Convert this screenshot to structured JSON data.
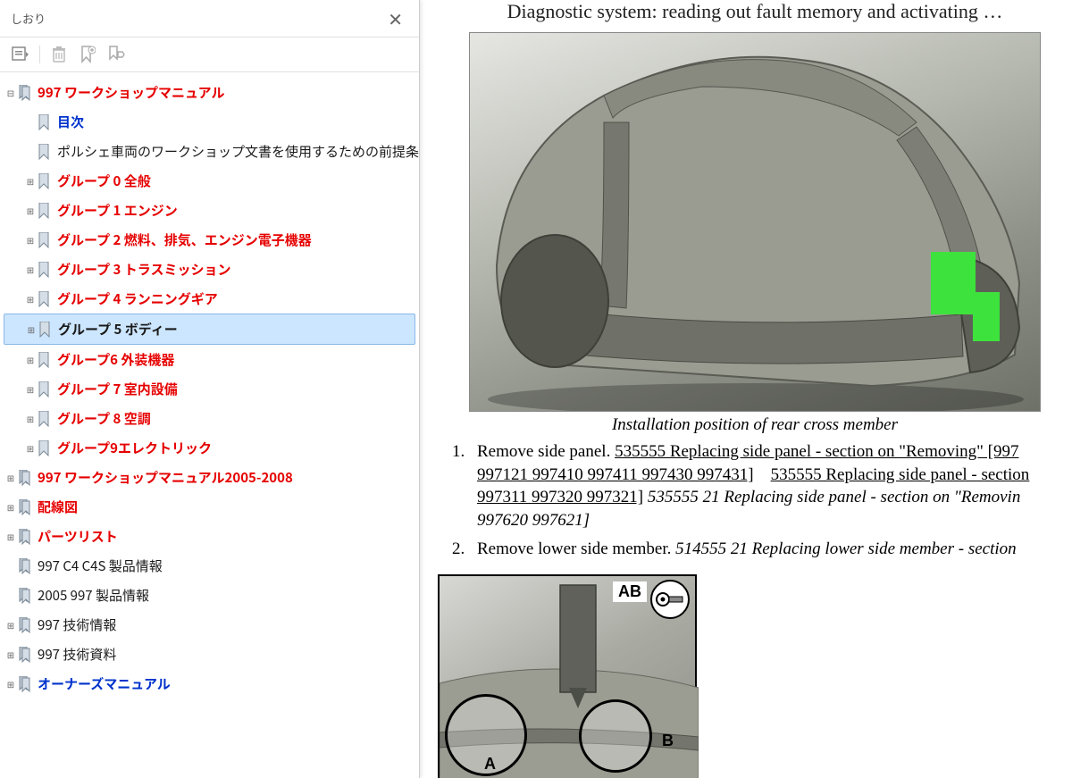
{
  "sidebar": {
    "title": "しおり",
    "colors": {
      "red": "#e60000",
      "blue": "#0033cc",
      "black": "#1a1a1a",
      "selected_bg": "#cce6ff",
      "selected_border": "#8ab8e5"
    }
  },
  "tree": [
    {
      "level": 0,
      "label": "997  ワークショップマニュアル",
      "color": "red",
      "bold": true,
      "icon": "multi",
      "expander": "−"
    },
    {
      "level": 1,
      "label": "目次",
      "color": "blue",
      "bold": true,
      "icon": "single",
      "expander": ""
    },
    {
      "level": 1,
      "label": "ポルシェ車両のワークショップ文書を使用するための前提条件",
      "color": "black",
      "bold": false,
      "icon": "single",
      "expander": ""
    },
    {
      "level": 1,
      "label": "グループ 0 全般",
      "color": "red",
      "bold": true,
      "icon": "single",
      "expander": "+"
    },
    {
      "level": 1,
      "label": "グループ 1 エンジン",
      "color": "red",
      "bold": true,
      "icon": "single",
      "expander": "+"
    },
    {
      "level": 1,
      "label": "グループ 2 燃料、排気、エンジン電子機器",
      "color": "red",
      "bold": true,
      "icon": "single",
      "expander": "+"
    },
    {
      "level": 1,
      "label": "グループ 3 トラスミッション",
      "color": "red",
      "bold": true,
      "icon": "single",
      "expander": "+"
    },
    {
      "level": 1,
      "label": "グループ 4 ランニングギア",
      "color": "red",
      "bold": true,
      "icon": "single",
      "expander": "+"
    },
    {
      "level": 1,
      "label": "グループ 5 ボディー",
      "color": "black",
      "bold": true,
      "icon": "single",
      "expander": "+",
      "selected": true
    },
    {
      "level": 1,
      "label": "グループ6 外装機器",
      "color": "red",
      "bold": true,
      "icon": "single",
      "expander": "+"
    },
    {
      "level": 1,
      "label": "グループ 7 室内設備",
      "color": "red",
      "bold": true,
      "icon": "single",
      "expander": "+"
    },
    {
      "level": 1,
      "label": "グループ 8 空調",
      "color": "red",
      "bold": true,
      "icon": "single",
      "expander": "+"
    },
    {
      "level": 1,
      "label": "グループ9エレクトリック",
      "color": "red",
      "bold": true,
      "icon": "single",
      "expander": "+"
    },
    {
      "level": 0,
      "label": "997 ワークショップマニュアル2005-2008",
      "color": "red",
      "bold": true,
      "icon": "multi",
      "expander": "+"
    },
    {
      "level": 0,
      "label": "配線図",
      "color": "red",
      "bold": true,
      "icon": "multi",
      "expander": "+"
    },
    {
      "level": 0,
      "label": "パーツリスト",
      "color": "red",
      "bold": true,
      "icon": "multi",
      "expander": "+"
    },
    {
      "level": 0,
      "label": "997 C4 C4S 製品情報",
      "color": "black",
      "bold": false,
      "icon": "multi",
      "expander": ""
    },
    {
      "level": 0,
      "label": "2005   997   製品情報",
      "color": "black",
      "bold": false,
      "icon": "multi",
      "expander": ""
    },
    {
      "level": 0,
      "label": "997 技術情報",
      "color": "black",
      "bold": false,
      "icon": "multi",
      "expander": "+"
    },
    {
      "level": 0,
      "label": "997 技術資料",
      "color": "black",
      "bold": false,
      "icon": "multi",
      "expander": "+"
    },
    {
      "level": 0,
      "label": "オーナーズマニュアル",
      "color": "blue",
      "bold": true,
      "icon": "multi",
      "expander": "+"
    }
  ],
  "content": {
    "pageTitle": "Diagnostic system: reading out fault memory and activating …",
    "figure1_caption": "Installation position of rear cross member",
    "steps": [
      {
        "num": "1.",
        "plain": "Remove side panel.   ",
        "link1": "535555 Replacing side panel - section on \"Removing\" [997",
        "link2": "997121 997410 997411 997430 997431]",
        "link3": "535555 Replacing side panel - section",
        "link4": "997311 997320 997321]",
        "italic": "   535555 21 Replacing side panel - section on \"Removin",
        "italic2": "997620 997621]"
      },
      {
        "num": "2.",
        "plain": "Remove lower side member.    ",
        "italic": "514555 21 Replacing lower side member - section"
      }
    ],
    "ab_label_top": "AB",
    "a_label": "A",
    "b_label": "B"
  }
}
